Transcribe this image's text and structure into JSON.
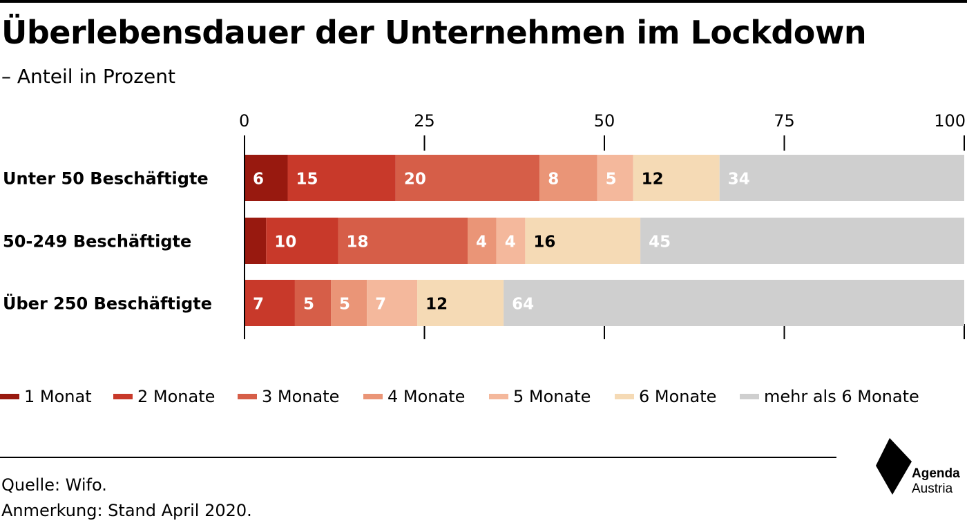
{
  "title": "Überlebensdauer der Unternehmen im Lockdown",
  "subtitle": "– Anteil in Prozent",
  "source": "Quelle: Wifo.",
  "note": "Anmerkung: Stand April 2020.",
  "logo": {
    "line1": "Agenda",
    "line2": "Austria"
  },
  "chart_data": {
    "type": "bar",
    "orientation": "horizontal",
    "stacked": true,
    "title": "Überlebensdauer der Unternehmen im Lockdown",
    "subtitle": "– Anteil in Prozent",
    "xlim": [
      0,
      100
    ],
    "xticks": [
      0,
      25,
      50,
      75,
      100
    ],
    "xtick_labels": [
      "0",
      "25",
      "50",
      "75",
      "100"
    ],
    "legend_position": "bottom",
    "categories": [
      "Unter 50 Beschäftigte",
      "50-249 Beschäftigte",
      "Über 250 Beschäftigte"
    ],
    "series": [
      {
        "name": "1 Monat",
        "color": "#98190f",
        "label_color": "#ffffff",
        "values": [
          6,
          3,
          0
        ],
        "labels": [
          "6",
          "",
          ""
        ]
      },
      {
        "name": "2 Monate",
        "color": "#c8392a",
        "label_color": "#ffffff",
        "values": [
          15,
          10,
          7
        ],
        "labels": [
          "15",
          "10",
          "7"
        ]
      },
      {
        "name": "3 Monate",
        "color": "#d65e48",
        "label_color": "#ffffff",
        "values": [
          20,
          18,
          5
        ],
        "labels": [
          "20",
          "18",
          "5"
        ]
      },
      {
        "name": "4 Monate",
        "color": "#ea9577",
        "label_color": "#ffffff",
        "values": [
          8,
          4,
          5
        ],
        "labels": [
          "8",
          "4",
          "5"
        ]
      },
      {
        "name": "5 Monate",
        "color": "#f4b89c",
        "label_color": "#ffffff",
        "values": [
          5,
          4,
          7
        ],
        "labels": [
          "5",
          "4",
          "7"
        ]
      },
      {
        "name": "6 Monate",
        "color": "#f5dab5",
        "label_color": "#000000",
        "values": [
          12,
          16,
          12
        ],
        "labels": [
          "12",
          "16",
          "12"
        ]
      },
      {
        "name": "mehr als 6 Monate",
        "color": "#cfcfcf",
        "label_color": "#ffffff",
        "values": [
          34,
          45,
          64
        ],
        "labels": [
          "34",
          "45",
          "64"
        ]
      }
    ]
  }
}
